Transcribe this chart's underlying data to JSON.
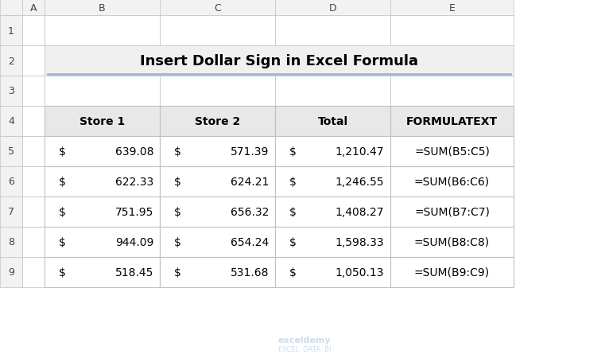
{
  "title": "Insert Dollar Sign in Excel Formula",
  "title_bg": "#f0f0f0",
  "title_underline_color": "#a0b4d0",
  "col_headers": [
    "A",
    "B",
    "C",
    "D",
    "E"
  ],
  "row_numbers": [
    "1",
    "2",
    "3",
    "4",
    "5",
    "6",
    "7",
    "8",
    "9"
  ],
  "table_headers": [
    "Store 1",
    "Store 2",
    "Total",
    "FORMULATEXT"
  ],
  "store1": [
    "$ 639.08",
    "$ 622.33",
    "$ 751.95",
    "$ 944.09",
    "$ 518.45"
  ],
  "store2": [
    "$ 571.39",
    "$ 624.21",
    "$ 656.32",
    "$ 654.24",
    "$ 531.68"
  ],
  "total": [
    "$ 1,210.47",
    "$ 1,246.55",
    "$ 1,408.27",
    "$ 1,598.33",
    "$ 1,050.13"
  ],
  "formula": [
    "=SUM(B5:C5)",
    "=SUM(B6:C6)",
    "=SUM(B7:C7)",
    "=SUM(B8:C8)",
    "=SUM(B9:C9)"
  ],
  "bg_color": "#ffffff",
  "grid_color": "#c0c0c0",
  "header_row_bg": "#e8e8e8",
  "cell_bg": "#ffffff",
  "text_color": "#000000",
  "watermark_color": "#c8d8e8",
  "col_header_bg": "#f2f2f2",
  "row_header_bg": "#f2f2f2"
}
